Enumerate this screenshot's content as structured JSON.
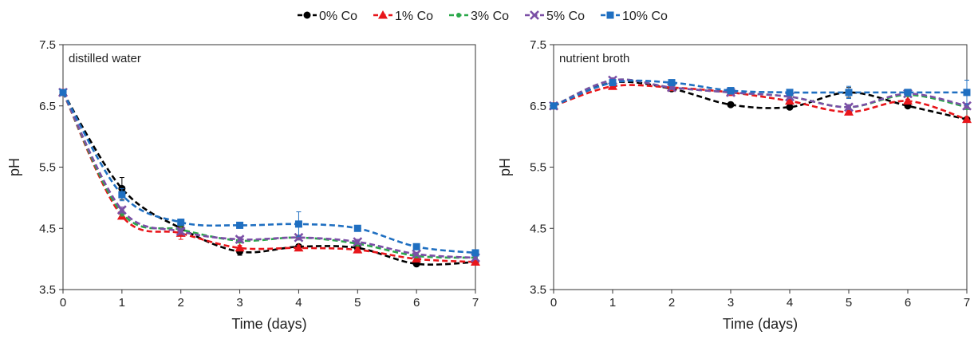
{
  "legend": {
    "placement": "top-center",
    "items": [
      {
        "label": "0% Co",
        "color": "#000000",
        "marker": "circle"
      },
      {
        "label": "1% Co",
        "color": "#e8161b",
        "marker": "triangle"
      },
      {
        "label": "3% Co",
        "color": "#2aa84a",
        "marker": "dot"
      },
      {
        "label": "5% Co",
        "color": "#7b4fa6",
        "marker": "x"
      },
      {
        "label": "10% Co",
        "color": "#1f6fc1",
        "marker": "square"
      }
    ]
  },
  "chart_data": [
    {
      "type": "line",
      "panel_label": "distilled water",
      "xlabel": "Time (days)",
      "ylabel": "pH",
      "xlim": [
        0,
        7
      ],
      "ylim": [
        3.5,
        7.5
      ],
      "x_ticks": [
        0,
        1,
        2,
        3,
        4,
        5,
        6,
        7
      ],
      "y_ticks": [
        3.5,
        4.5,
        5.5,
        6.5,
        7.5
      ],
      "x": [
        0,
        1,
        2,
        3,
        4,
        5,
        6,
        7
      ],
      "grid": false,
      "series": [
        {
          "name": "0% Co",
          "values": [
            6.72,
            5.15,
            4.5,
            4.12,
            4.2,
            4.18,
            3.92,
            3.95
          ],
          "errors": [
            0,
            0.18,
            0.05,
            0.06,
            0.04,
            0.04,
            0.03,
            0.03
          ]
        },
        {
          "name": "1% Co",
          "values": [
            6.72,
            4.7,
            4.42,
            4.18,
            4.18,
            4.15,
            4.0,
            3.95
          ],
          "errors": [
            0,
            0.05,
            0.1,
            0.04,
            0.04,
            0.04,
            0.03,
            0.03
          ]
        },
        {
          "name": "3% Co",
          "values": [
            6.72,
            4.75,
            4.48,
            4.3,
            4.35,
            4.25,
            4.05,
            4.02
          ],
          "errors": [
            0,
            0.05,
            0.05,
            0.04,
            0.04,
            0.04,
            0.03,
            0.03
          ]
        },
        {
          "name": "5% Co",
          "values": [
            6.72,
            4.8,
            4.45,
            4.32,
            4.35,
            4.28,
            4.08,
            4.02
          ],
          "errors": [
            0,
            0.05,
            0.05,
            0.04,
            0.04,
            0.04,
            0.03,
            0.03
          ]
        },
        {
          "name": "10% Co",
          "values": [
            6.72,
            5.05,
            4.6,
            4.55,
            4.57,
            4.5,
            4.2,
            4.1
          ],
          "errors": [
            0,
            0.1,
            0.05,
            0.04,
            0.2,
            0.04,
            0.04,
            0.04
          ]
        }
      ]
    },
    {
      "type": "line",
      "panel_label": "nutrient broth",
      "xlabel": "Time (days)",
      "ylabel": "pH",
      "xlim": [
        0,
        7
      ],
      "ylim": [
        3.5,
        7.5
      ],
      "x_ticks": [
        0,
        1,
        2,
        3,
        4,
        5,
        6,
        7
      ],
      "y_ticks": [
        3.5,
        4.5,
        5.5,
        6.5,
        7.5
      ],
      "x": [
        0,
        1,
        2,
        3,
        4,
        5,
        6,
        7
      ],
      "grid": false,
      "series": [
        {
          "name": "0% Co",
          "values": [
            6.5,
            6.88,
            6.78,
            6.52,
            6.48,
            6.72,
            6.5,
            6.28
          ],
          "errors": [
            0,
            0.04,
            0.03,
            0.03,
            0.03,
            0.08,
            0.03,
            0.04
          ]
        },
        {
          "name": "1% Co",
          "values": [
            6.5,
            6.82,
            6.8,
            6.72,
            6.58,
            6.4,
            6.58,
            6.28
          ],
          "errors": [
            0,
            0.04,
            0.03,
            0.03,
            0.03,
            0.04,
            0.03,
            0.04
          ]
        },
        {
          "name": "3% Co",
          "values": [
            6.5,
            6.92,
            6.8,
            6.72,
            6.65,
            6.48,
            6.68,
            6.48
          ],
          "errors": [
            0,
            0.04,
            0.03,
            0.03,
            0.03,
            0.04,
            0.03,
            0.04
          ]
        },
        {
          "name": "5% Co",
          "values": [
            6.5,
            6.92,
            6.8,
            6.72,
            6.65,
            6.48,
            6.7,
            6.5
          ],
          "errors": [
            0,
            0.04,
            0.03,
            0.03,
            0.03,
            0.04,
            0.03,
            0.04
          ]
        },
        {
          "name": "10% Co",
          "values": [
            6.5,
            6.88,
            6.88,
            6.75,
            6.72,
            6.72,
            6.72,
            6.72
          ],
          "errors": [
            0,
            0.04,
            0.03,
            0.03,
            0.03,
            0.1,
            0.03,
            0.2
          ]
        }
      ]
    }
  ]
}
